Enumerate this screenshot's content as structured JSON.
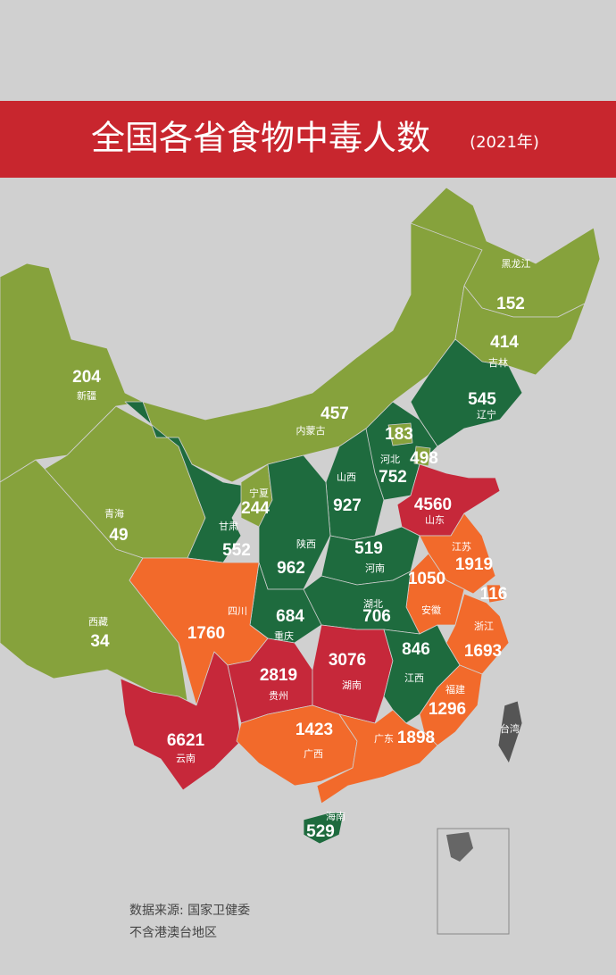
{
  "header": {
    "title": "全国各省食物中毒人数",
    "subtitle": "(2021年)"
  },
  "provinces": [
    {
      "name": "新疆",
      "value": 204,
      "color": "#86a23c"
    },
    {
      "name": "西藏",
      "value": 34,
      "color": "#86a23c"
    },
    {
      "name": "青海",
      "value": 49,
      "color": "#86a23c"
    },
    {
      "name": "内蒙古",
      "value": 457,
      "color": "#86a23c"
    },
    {
      "name": "黑龙江",
      "value": 152,
      "color": "#86a23c"
    },
    {
      "name": "吉林",
      "value": 414,
      "color": "#86a23c"
    },
    {
      "name": "辽宁",
      "value": 545,
      "color": "#1e6b3e"
    },
    {
      "name": "甘肃",
      "value": 552,
      "color": "#1e6b3e"
    },
    {
      "name": "河北",
      "value": 752,
      "color": "#1e6b3e"
    },
    {
      "name": null,
      "value": 183,
      "color": "#86a23c"
    },
    {
      "name": null,
      "value": 498,
      "color": "#86a23c"
    },
    {
      "name": "山西",
      "value": 927,
      "color": "#1e6b3e"
    },
    {
      "name": "山东",
      "value": 4560,
      "color": "#c6283a"
    },
    {
      "name": "宁夏",
      "value": 244,
      "color": "#86a23c"
    },
    {
      "name": "陕西",
      "value": 962,
      "color": "#1e6b3e"
    },
    {
      "name": "河南",
      "value": 519,
      "color": "#1e6b3e"
    },
    {
      "name": "江苏",
      "value": 1919,
      "color": "#f26a2b"
    },
    {
      "name": "安徽",
      "value": 1050,
      "color": "#f26a2b"
    },
    {
      "name": null,
      "value": 116,
      "color": "#f26a2b"
    },
    {
      "name": "浙江",
      "value": 1693,
      "color": "#f26a2b"
    },
    {
      "name": "湖北",
      "value": 706,
      "color": "#1e6b3e"
    },
    {
      "name": "重庆",
      "value": 684,
      "color": "#1e6b3e"
    },
    {
      "name": "四川",
      "value": 1760,
      "color": "#f26a2b"
    },
    {
      "name": "云南",
      "value": 6621,
      "color": "#c6283a"
    },
    {
      "name": "贵州",
      "value": 2819,
      "color": "#c6283a"
    },
    {
      "name": "湖南",
      "value": 3076,
      "color": "#c6283a"
    },
    {
      "name": "江西",
      "value": 846,
      "color": "#1e6b3e"
    },
    {
      "name": "福建",
      "value": 1296,
      "color": "#f26a2b"
    },
    {
      "name": "广西",
      "value": 1423,
      "color": "#f26a2b"
    },
    {
      "name": "广东",
      "value": 1898,
      "color": "#f26a2b"
    },
    {
      "name": "海南",
      "value": 529,
      "color": "#1e6b3e"
    },
    {
      "name": "台湾",
      "value": null,
      "color": "#555555"
    }
  ],
  "footer": {
    "source": "数据来源: 国家卫健委",
    "note": "不含港澳台地区"
  }
}
